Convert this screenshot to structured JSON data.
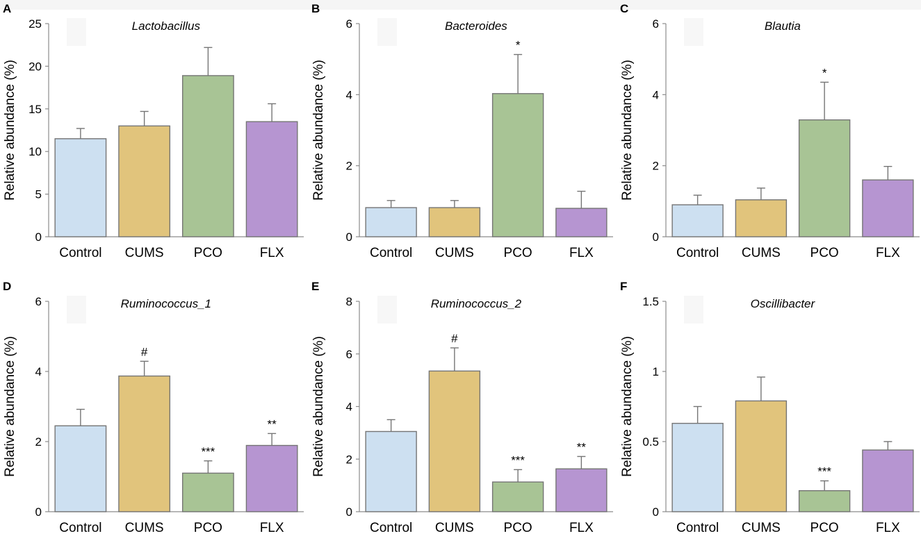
{
  "categories": [
    "Control",
    "CUMS",
    "PCO",
    "FLX"
  ],
  "colors": {
    "bar_fills": [
      "#cde0f1",
      "#e1c47c",
      "#a8c495",
      "#b695d1"
    ],
    "bar_stroke": "#757575",
    "axis": "#8c8c8c",
    "placeholder": "#f7f7f7"
  },
  "chart_data": [
    {
      "panel": "A",
      "type": "bar",
      "title": "Lactobacillus",
      "ylabel": "Relative abundance (%)",
      "xlabel": "",
      "ylim": [
        0,
        25
      ],
      "yticks": [
        0,
        5,
        10,
        15,
        20,
        25
      ],
      "categories": [
        "Control",
        "CUMS",
        "PCO",
        "FLX"
      ],
      "values": [
        11.5,
        13.0,
        18.9,
        13.5
      ],
      "errors": [
        1.2,
        1.7,
        3.3,
        2.1
      ],
      "significance": [
        "",
        "",
        "",
        ""
      ]
    },
    {
      "panel": "B",
      "type": "bar",
      "title": "Bacteroides",
      "ylabel": "Relative abundance (%)",
      "xlabel": "",
      "ylim": [
        0,
        6
      ],
      "yticks": [
        0,
        2,
        4,
        6
      ],
      "categories": [
        "Control",
        "CUMS",
        "PCO",
        "FLX"
      ],
      "values": [
        0.82,
        0.82,
        4.03,
        0.8
      ],
      "errors": [
        0.2,
        0.2,
        1.1,
        0.48
      ],
      "significance": [
        "",
        "",
        "*",
        ""
      ]
    },
    {
      "panel": "C",
      "type": "bar",
      "title": "Blautia",
      "ylabel": "Relative abundance (%)",
      "xlabel": "",
      "ylim": [
        0,
        6
      ],
      "yticks": [
        0,
        2,
        4,
        6
      ],
      "categories": [
        "Control",
        "CUMS",
        "PCO",
        "FLX"
      ],
      "values": [
        0.9,
        1.04,
        3.29,
        1.6
      ],
      "errors": [
        0.27,
        0.33,
        1.06,
        0.38
      ],
      "significance": [
        "",
        "",
        "*",
        ""
      ]
    },
    {
      "panel": "D",
      "type": "bar",
      "title": "Ruminococcus_1",
      "ylabel": "Relative abundance (%)",
      "xlabel": "",
      "ylim": [
        0,
        6
      ],
      "yticks": [
        0,
        2,
        4,
        6
      ],
      "categories": [
        "Control",
        "CUMS",
        "PCO",
        "FLX"
      ],
      "values": [
        2.45,
        3.87,
        1.1,
        1.89
      ],
      "errors": [
        0.47,
        0.42,
        0.35,
        0.34
      ],
      "significance": [
        "",
        "#",
        "***",
        "**"
      ]
    },
    {
      "panel": "E",
      "type": "bar",
      "title": "Ruminococcus_2",
      "ylabel": "Relative abundance (%)",
      "xlabel": "",
      "ylim": [
        0,
        8
      ],
      "yticks": [
        0,
        2,
        4,
        6,
        8
      ],
      "categories": [
        "Control",
        "CUMS",
        "PCO",
        "FLX"
      ],
      "values": [
        3.05,
        5.35,
        1.13,
        1.63
      ],
      "errors": [
        0.45,
        0.88,
        0.47,
        0.47
      ],
      "significance": [
        "",
        "#",
        "***",
        "**"
      ]
    },
    {
      "panel": "F",
      "type": "bar",
      "title": "Oscillibacter",
      "ylabel": "Relative abundance (%)",
      "xlabel": "",
      "ylim": [
        0,
        1.5
      ],
      "yticks": [
        0,
        0.5,
        1,
        1.5
      ],
      "categories": [
        "Control",
        "CUMS",
        "PCO",
        "FLX"
      ],
      "values": [
        0.63,
        0.79,
        0.15,
        0.44
      ],
      "errors": [
        0.12,
        0.17,
        0.07,
        0.06
      ],
      "significance": [
        "",
        "",
        "***",
        ""
      ]
    }
  ]
}
